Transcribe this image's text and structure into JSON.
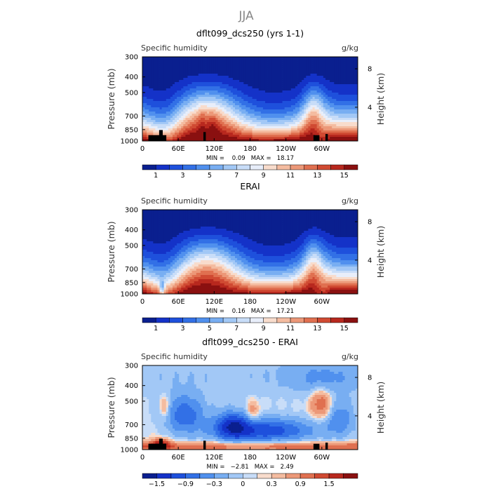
{
  "figure_title": "JJA",
  "colors": {
    "ramp": [
      "#0a1f8f",
      "#1432c8",
      "#1e50dc",
      "#3270e6",
      "#5090ee",
      "#78aef2",
      "#a2c8f6",
      "#c8ddf8",
      "#e8eefa",
      "#f8dccc",
      "#f4bca0",
      "#ec9878",
      "#e07050",
      "#d04a32",
      "#b8281e",
      "#8a1010"
    ],
    "diff_ramp": [
      "#0a1f8f",
      "#1432c8",
      "#1e50dc",
      "#3270e6",
      "#5090ee",
      "#78aef2",
      "#a2c8f6",
      "#c8ddf8",
      "#f8dccc",
      "#f4bca0",
      "#ec9878",
      "#e07050",
      "#d04a32",
      "#b8281e",
      "#8a1010"
    ],
    "terrain": "#000000"
  },
  "chart_data": [
    {
      "type": "heatmap",
      "title": "dflt099_dcs250 (yrs 1-1)",
      "left_label": "Specific humidity",
      "right_label": "g/kg",
      "ylabel": "Pressure (mb)",
      "ylabel_right": "Height (km)",
      "x_ticks": [
        "0",
        "60E",
        "120E",
        "180",
        "120W",
        "60W"
      ],
      "x_range": [
        0,
        360
      ],
      "x_tick_values": [
        0,
        60,
        120,
        180,
        240,
        300
      ],
      "y_ticks": [
        "300",
        "400",
        "500",
        "700",
        "850",
        "1000"
      ],
      "y_tick_values": [
        300,
        400,
        500,
        700,
        850,
        1000
      ],
      "y_range": [
        300,
        1000
      ],
      "y_scale": "log",
      "height_ticks": [
        "8",
        "4"
      ],
      "height_tick_pressures": [
        356,
        617
      ],
      "stats": "MIN =    0.09   MAX =   18.17",
      "min": 0.09,
      "max": 18.17,
      "colorbar_labels": [
        "1",
        "3",
        "5",
        "7",
        "9",
        "11",
        "13",
        "15"
      ],
      "colorbar_label_values": [
        1,
        3,
        5,
        7,
        9,
        11,
        13,
        15
      ],
      "levels_min": 0,
      "levels_step": 1,
      "levels_count": 16,
      "field": "model_q",
      "terrain": [
        [
          10,
          40,
          920
        ],
        [
          28,
          34,
          855
        ],
        [
          102,
          106,
          880
        ],
        [
          286,
          296,
          920
        ],
        [
          306,
          310,
          905
        ]
      ]
    },
    {
      "type": "heatmap",
      "title": "ERAI",
      "left_label": "Specific humidity",
      "right_label": "g/kg",
      "ylabel": "Pressure (mb)",
      "ylabel_right": "Height (km)",
      "x_ticks": [
        "0",
        "60E",
        "120E",
        "180",
        "120W",
        "60W"
      ],
      "x_range": [
        0,
        360
      ],
      "x_tick_values": [
        0,
        60,
        120,
        180,
        240,
        300
      ],
      "y_ticks": [
        "300",
        "400",
        "500",
        "700",
        "850",
        "1000"
      ],
      "y_tick_values": [
        300,
        400,
        500,
        700,
        850,
        1000
      ],
      "y_range": [
        300,
        1000
      ],
      "y_scale": "log",
      "height_ticks": [
        "8",
        "4"
      ],
      "height_tick_pressures": [
        356,
        617
      ],
      "stats": "MIN =    0.16   MAX =   17.21",
      "min": 0.16,
      "max": 17.21,
      "colorbar_labels": [
        "1",
        "3",
        "5",
        "7",
        "9",
        "11",
        "13",
        "15"
      ],
      "colorbar_label_values": [
        1,
        3,
        5,
        7,
        9,
        11,
        13,
        15
      ],
      "levels_min": 0,
      "levels_step": 1,
      "levels_count": 16,
      "field": "obs_q",
      "terrain": []
    },
    {
      "type": "heatmap",
      "title": "dflt099_dcs250 - ERAI",
      "left_label": "Specific humidity",
      "right_label": "g/kg",
      "ylabel": "Pressure (mb)",
      "ylabel_right": "Height (km)",
      "x_ticks": [
        "0",
        "60E",
        "120E",
        "180",
        "120W",
        "60W"
      ],
      "x_range": [
        0,
        360
      ],
      "x_tick_values": [
        0,
        60,
        120,
        180,
        240,
        300
      ],
      "y_ticks": [
        "300",
        "400",
        "500",
        "700",
        "850",
        "1000"
      ],
      "y_tick_values": [
        300,
        400,
        500,
        700,
        850,
        1000
      ],
      "y_range": [
        300,
        1000
      ],
      "y_scale": "log",
      "height_ticks": [
        "8",
        "4"
      ],
      "height_tick_pressures": [
        356,
        617
      ],
      "stats": "MIN =   −2.81   MAX =   2.49",
      "min": -2.81,
      "max": 2.49,
      "colorbar_labels": [
        "−1.5",
        "−0.9",
        "−0.3",
        "0",
        "0.3",
        "0.9",
        "1.5"
      ],
      "colorbar_label_values": [
        -1.5,
        -0.9,
        -0.3,
        0,
        0.3,
        0.9,
        1.5
      ],
      "diff_levels": [
        -1.8,
        -1.5,
        -1.2,
        -0.9,
        -0.6,
        -0.3,
        -0.1,
        0,
        0.1,
        0.3,
        0.6,
        0.9,
        1.2,
        1.5,
        1.8
      ],
      "field": "diff_q",
      "terrain": [
        [
          10,
          40,
          920
        ],
        [
          28,
          34,
          855
        ],
        [
          102,
          106,
          880
        ],
        [
          286,
          296,
          920
        ],
        [
          306,
          310,
          905
        ]
      ]
    }
  ]
}
